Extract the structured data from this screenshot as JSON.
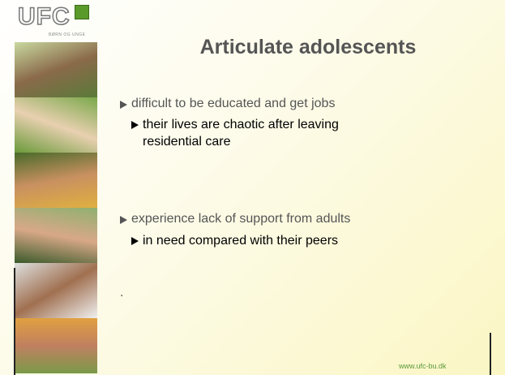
{
  "logo": {
    "name": "UFC",
    "tagline": "BØRN OG UNGE"
  },
  "title": "Articulate adolescents",
  "bullets": [
    {
      "text": "difficult to be educated and get jobs",
      "sub": [
        "their lives are chaotic after leaving residential care"
      ]
    },
    {
      "text": "experience lack of support from adults",
      "sub": [
        "in need compared with their peers"
      ]
    }
  ],
  "stray": ".",
  "footer": "www.ufc-bu.dk"
}
